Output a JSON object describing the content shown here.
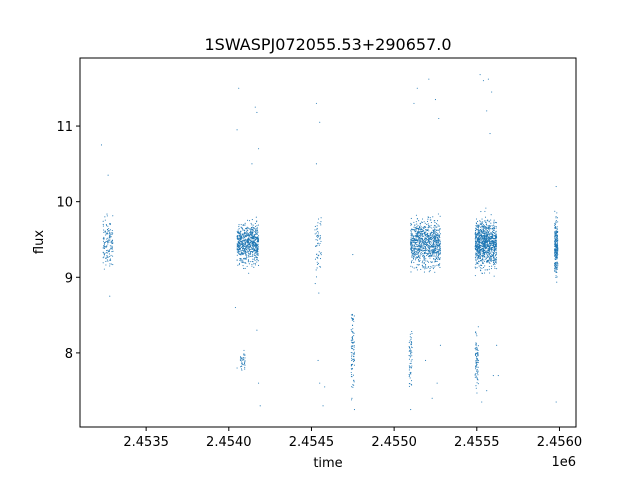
{
  "chart_data": {
    "type": "scatter",
    "title": "1SWASPJ072055.53+290657.0",
    "xlabel": "time",
    "ylabel": "flux",
    "x_offset_label": "1e6",
    "xlim": [
      2.4531,
      2.4561
    ],
    "ylim": [
      7.02,
      11.9
    ],
    "x_ticks": [
      2.4535,
      2.454,
      2.4545,
      2.455,
      2.4555,
      2.456
    ],
    "x_tick_labels": [
      "2.4535",
      "2.4540",
      "2.4545",
      "2.4550",
      "2.4555",
      "2.4560"
    ],
    "y_ticks": [
      8,
      9,
      10,
      11
    ],
    "y_tick_labels": [
      "8",
      "9",
      "10",
      "11"
    ],
    "grid": false,
    "marker": "point",
    "color": "#1f77b4",
    "series": [
      {
        "clusters": [
          {
            "x_range": [
              2.45324,
              2.4533
            ],
            "y_center": 9.45,
            "y_spread": 0.28,
            "count": 140
          },
          {
            "x_range": [
              2.45405,
              2.45418
            ],
            "y_center": 9.45,
            "y_spread": 0.22,
            "count": 700
          },
          {
            "x_range": [
              2.45407,
              2.4541
            ],
            "y_center": 7.9,
            "y_spread": 0.1,
            "count": 40
          },
          {
            "x_range": [
              2.45452,
              2.45456
            ],
            "y_center": 9.45,
            "y_spread": 0.35,
            "count": 60
          },
          {
            "x_range": [
              2.45474,
              2.45476
            ],
            "y_center": 8.1,
            "y_spread": 0.45,
            "count": 90
          },
          {
            "x_range": [
              2.4551,
              2.45528
            ],
            "y_center": 9.45,
            "y_spread": 0.25,
            "count": 900
          },
          {
            "x_range": [
              2.45509,
              2.45511
            ],
            "y_center": 7.95,
            "y_spread": 0.3,
            "count": 60
          },
          {
            "x_range": [
              2.45549,
              2.45562
            ],
            "y_center": 9.45,
            "y_spread": 0.25,
            "count": 1000
          },
          {
            "x_range": [
              2.45549,
              2.45551
            ],
            "y_center": 7.9,
            "y_spread": 0.3,
            "count": 80
          },
          {
            "x_range": [
              2.45597,
              2.45599
            ],
            "y_center": 9.4,
            "y_spread": 0.3,
            "count": 250
          }
        ],
        "sparse": [
          {
            "x": 2.45323,
            "y": 10.75
          },
          {
            "x": 2.45327,
            "y": 10.35
          },
          {
            "x": 2.45328,
            "y": 8.75
          },
          {
            "x": 2.45406,
            "y": 11.5
          },
          {
            "x": 2.45405,
            "y": 10.95
          },
          {
            "x": 2.45416,
            "y": 11.25
          },
          {
            "x": 2.45417,
            "y": 11.18
          },
          {
            "x": 2.45418,
            "y": 10.7
          },
          {
            "x": 2.45414,
            "y": 10.5
          },
          {
            "x": 2.45417,
            "y": 8.3
          },
          {
            "x": 2.45418,
            "y": 7.6
          },
          {
            "x": 2.45419,
            "y": 7.3
          },
          {
            "x": 2.45405,
            "y": 7.8
          },
          {
            "x": 2.45404,
            "y": 8.6
          },
          {
            "x": 2.45453,
            "y": 11.3
          },
          {
            "x": 2.45455,
            "y": 11.05
          },
          {
            "x": 2.45453,
            "y": 10.5
          },
          {
            "x": 2.45454,
            "y": 7.9
          },
          {
            "x": 2.45455,
            "y": 7.6
          },
          {
            "x": 2.45457,
            "y": 7.3
          },
          {
            "x": 2.45458,
            "y": 7.55
          },
          {
            "x": 2.45475,
            "y": 9.3
          },
          {
            "x": 2.45476,
            "y": 7.25
          },
          {
            "x": 2.4551,
            "y": 7.25
          },
          {
            "x": 2.45512,
            "y": 11.3
          },
          {
            "x": 2.45514,
            "y": 11.5
          },
          {
            "x": 2.45521,
            "y": 11.62
          },
          {
            "x": 2.45525,
            "y": 11.35
          },
          {
            "x": 2.45527,
            "y": 11.1
          },
          {
            "x": 2.45523,
            "y": 7.4
          },
          {
            "x": 2.45526,
            "y": 7.6
          },
          {
            "x": 2.45519,
            "y": 7.9
          },
          {
            "x": 2.45528,
            "y": 8.1
          },
          {
            "x": 2.45552,
            "y": 11.68
          },
          {
            "x": 2.45554,
            "y": 11.6
          },
          {
            "x": 2.45557,
            "y": 11.62
          },
          {
            "x": 2.45559,
            "y": 11.45
          },
          {
            "x": 2.45556,
            "y": 11.2
          },
          {
            "x": 2.45558,
            "y": 10.9
          },
          {
            "x": 2.45553,
            "y": 7.35
          },
          {
            "x": 2.45556,
            "y": 7.5
          },
          {
            "x": 2.4556,
            "y": 7.7
          },
          {
            "x": 2.45562,
            "y": 8.1
          },
          {
            "x": 2.45563,
            "y": 7.7
          },
          {
            "x": 2.45598,
            "y": 7.35
          },
          {
            "x": 2.45598,
            "y": 10.2
          }
        ]
      }
    ]
  }
}
